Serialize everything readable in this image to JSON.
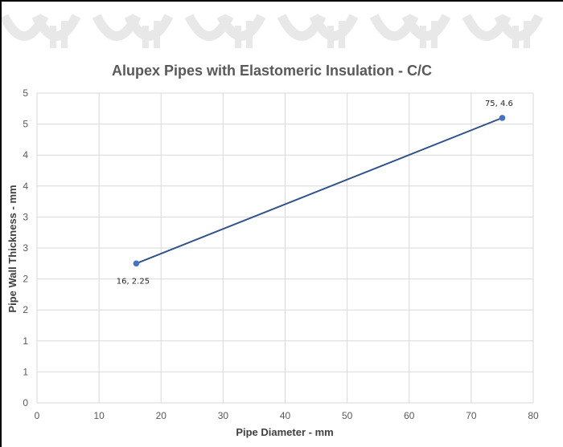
{
  "chart_data": {
    "type": "line",
    "title": "Alupex Pipes with Elastomeric Insulation - C/C",
    "xlabel": "Pipe Diameter - mm",
    "ylabel": "Pipe Wall Thickness - mm",
    "xlim": [
      0,
      80
    ],
    "ylim": [
      0,
      5
    ],
    "x_ticks": [
      "0",
      "10",
      "20",
      "30",
      "40",
      "50",
      "60",
      "70",
      "80"
    ],
    "y_ticks": [
      "0",
      "1",
      "1",
      "2",
      "2",
      "3",
      "3",
      "4",
      "4",
      "5",
      "5"
    ],
    "grid": true,
    "legend": "none",
    "colors": {
      "series": "#4472c4",
      "line": "#2f528f",
      "grid": "#d9d9d9"
    },
    "series": [
      {
        "x": [
          16,
          75
        ],
        "y": [
          2.25,
          4.6
        ],
        "labels": [
          "16, 2.25",
          "75, 4.6"
        ]
      }
    ]
  }
}
